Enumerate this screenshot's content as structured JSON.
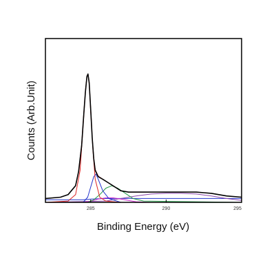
{
  "chart_data": {
    "type": "line",
    "title": "",
    "xlabel": "Binding Energy (eV)",
    "ylabel": "Counts (Arb.Unit)",
    "xlim": [
      282,
      295
    ],
    "ylim": [
      0,
      1.04
    ],
    "x_ticks": [
      285,
      290,
      295
    ],
    "x_tick_labels": [
      "285",
      "290",
      "295"
    ],
    "y_ticks_shown": false,
    "grid": false,
    "legend": "none",
    "series": [
      {
        "role": "experimental",
        "color": "#000000",
        "x": [
          282.0,
          283.0,
          283.5,
          284.0,
          284.2,
          284.4,
          284.55,
          284.65,
          284.75,
          284.82,
          284.9,
          285.0,
          285.1,
          285.2,
          285.3,
          285.5,
          285.8,
          286.2,
          286.6,
          287.0,
          287.5,
          288.0,
          289.0,
          290.0,
          290.5,
          291.0,
          291.5,
          292.0,
          292.5,
          293.0,
          293.5,
          294.0,
          295.0
        ],
        "y": [
          0.03,
          0.04,
          0.06,
          0.13,
          0.24,
          0.44,
          0.7,
          0.86,
          0.98,
          1.0,
          0.93,
          0.72,
          0.5,
          0.34,
          0.25,
          0.2,
          0.18,
          0.15,
          0.12,
          0.09,
          0.08,
          0.08,
          0.08,
          0.08,
          0.08,
          0.08,
          0.08,
          0.08,
          0.075,
          0.07,
          0.06,
          0.05,
          0.04
        ]
      },
      {
        "role": "fit-envelope",
        "color": "#cc2222",
        "x": [
          282.0,
          283.0,
          283.5,
          284.0,
          284.2,
          284.4,
          284.55,
          284.65,
          284.75,
          284.82,
          284.9,
          285.0,
          285.1,
          285.2,
          285.3,
          285.5,
          285.8,
          286.2,
          286.6,
          287.0,
          287.5,
          288.0,
          289.0,
          290.0,
          290.5,
          291.0,
          291.5,
          292.0,
          292.5,
          293.0,
          293.5,
          294.0,
          295.0
        ],
        "y": [
          0.03,
          0.04,
          0.06,
          0.13,
          0.24,
          0.45,
          0.71,
          0.87,
          0.985,
          1.0,
          0.935,
          0.73,
          0.51,
          0.345,
          0.255,
          0.205,
          0.18,
          0.15,
          0.12,
          0.09,
          0.08,
          0.08,
          0.08,
          0.08,
          0.08,
          0.08,
          0.08,
          0.08,
          0.075,
          0.07,
          0.06,
          0.05,
          0.04
        ]
      },
      {
        "role": "component-main",
        "color": "#dd2222",
        "x": [
          282.0,
          283.5,
          284.0,
          284.3,
          284.5,
          284.65,
          284.75,
          284.82,
          284.9,
          285.0,
          285.15,
          285.3,
          285.6,
          286.0,
          287.0,
          295.0
        ],
        "y": [
          0.0,
          0.01,
          0.06,
          0.25,
          0.6,
          0.86,
          0.98,
          1.0,
          0.92,
          0.7,
          0.4,
          0.18,
          0.04,
          0.01,
          0.0,
          0.0
        ]
      },
      {
        "role": "component-2",
        "color": "#2233cc",
        "x": [
          282.0,
          284.5,
          284.8,
          285.0,
          285.2,
          285.35,
          285.5,
          285.8,
          286.2,
          287.0,
          295.0
        ],
        "y": [
          0.0,
          0.0,
          0.04,
          0.12,
          0.2,
          0.22,
          0.18,
          0.09,
          0.03,
          0.0,
          0.0
        ]
      },
      {
        "role": "component-3",
        "color": "#229944",
        "x": [
          282.0,
          284.8,
          285.2,
          285.6,
          286.0,
          286.4,
          286.8,
          287.3,
          287.8,
          288.5,
          295.0
        ],
        "y": [
          0.0,
          0.0,
          0.02,
          0.06,
          0.11,
          0.13,
          0.11,
          0.07,
          0.03,
          0.01,
          0.0
        ]
      },
      {
        "role": "component-4",
        "color": "#cc22cc",
        "x": [
          282.0,
          284.5,
          285.0,
          285.5,
          286.0,
          286.5,
          287.0,
          287.5,
          288.0,
          289.0,
          295.0
        ],
        "y": [
          0.0,
          0.0,
          0.01,
          0.025,
          0.035,
          0.035,
          0.025,
          0.015,
          0.005,
          0.0,
          0.0
        ]
      },
      {
        "role": "component-broad",
        "color": "#8844aa",
        "x": [
          282.0,
          286.0,
          287.0,
          288.0,
          289.0,
          290.0,
          291.0,
          292.0,
          293.0,
          294.0,
          295.0
        ],
        "y": [
          0.0,
          0.01,
          0.03,
          0.05,
          0.065,
          0.07,
          0.07,
          0.065,
          0.05,
          0.03,
          0.015
        ]
      },
      {
        "role": "background",
        "color": "#2233cc",
        "x": [
          282.0,
          284.5,
          285.0,
          286.0,
          295.0
        ],
        "y": [
          0.02,
          0.02,
          0.025,
          0.03,
          0.03
        ]
      }
    ]
  }
}
